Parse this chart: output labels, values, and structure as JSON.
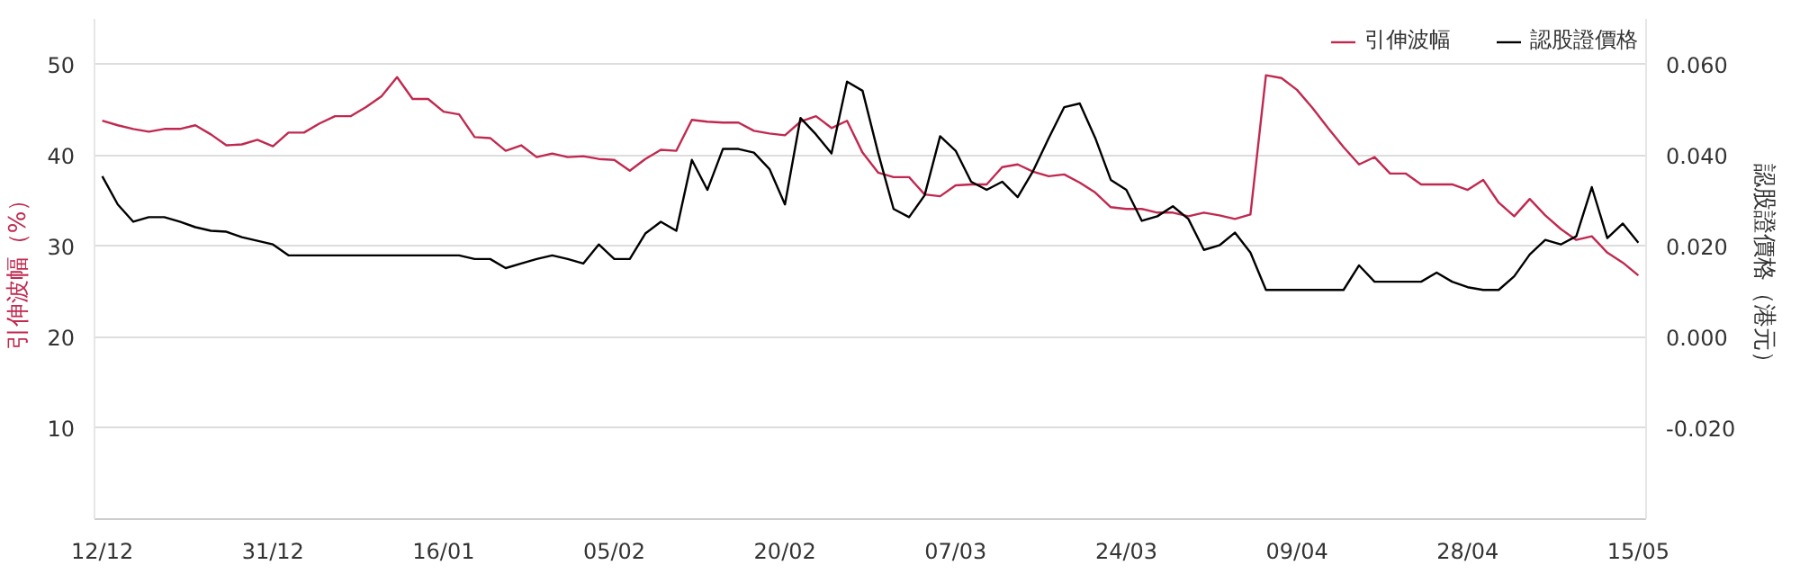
{
  "chart_data": {
    "type": "line",
    "categories": [
      "12/12",
      null,
      null,
      null,
      null,
      null,
      null,
      null,
      null,
      null,
      null,
      "31/12",
      null,
      null,
      null,
      null,
      null,
      null,
      null,
      null,
      null,
      null,
      "16/01",
      null,
      null,
      null,
      null,
      null,
      null,
      null,
      null,
      null,
      null,
      "05/02",
      null,
      null,
      null,
      null,
      null,
      null,
      null,
      null,
      null,
      null,
      "20/02",
      null,
      null,
      null,
      null,
      null,
      null,
      null,
      null,
      null,
      null,
      "07/03",
      null,
      null,
      null,
      null,
      null,
      null,
      null,
      null,
      null,
      null,
      "24/03",
      null,
      null,
      null,
      null,
      null,
      null,
      null,
      null,
      null,
      null,
      "09/04",
      null,
      null,
      null,
      null,
      null,
      null,
      null,
      null,
      null,
      null,
      "28/04",
      null,
      null,
      null,
      null,
      null,
      null,
      null,
      null,
      null,
      null,
      "15/05"
    ],
    "series": [
      {
        "name": "引伸波幅",
        "color": "#c0294f",
        "values": [
          43.8,
          43.3,
          42.9,
          42.6,
          42.9,
          42.9,
          43.3,
          42.3,
          41.1,
          41.2,
          41.7,
          41.0,
          42.5,
          42.5,
          43.5,
          44.3,
          44.3,
          45.3,
          46.5,
          48.6,
          46.2,
          46.2,
          44.8,
          44.5,
          42.0,
          41.9,
          40.5,
          41.1,
          39.8,
          40.2,
          39.8,
          39.9,
          39.6,
          39.5,
          38.3,
          39.6,
          40.6,
          40.5,
          43.9,
          43.7,
          43.6,
          43.6,
          42.7,
          42.4,
          42.2,
          43.7,
          44.3,
          43.0,
          43.8,
          40.3,
          38.1,
          37.6,
          37.6,
          35.7,
          35.5,
          36.7,
          36.8,
          36.8,
          38.7,
          39.0,
          38.2,
          37.7,
          37.9,
          37.0,
          35.9,
          34.3,
          34.1,
          34.1,
          33.7,
          33.7,
          33.3,
          33.7,
          33.4,
          33.0,
          33.5,
          48.8,
          48.5,
          47.2,
          45.2,
          43.0,
          40.9,
          39.0,
          39.8,
          38.0,
          38.0,
          36.8,
          36.8,
          36.8,
          36.2,
          37.3,
          34.8,
          33.3,
          35.2,
          33.4,
          31.9,
          30.7,
          31.1,
          29.3,
          28.2,
          26.8
        ]
      },
      {
        "name": "認股證價格",
        "color": "#000000",
        "axis": "y2",
        "values": [
          0.0354,
          0.0292,
          0.0254,
          0.0264,
          0.0264,
          0.0254,
          0.0242,
          0.0234,
          0.0232,
          0.022,
          0.0212,
          0.0204,
          0.018,
          0.018,
          0.018,
          0.018,
          0.018,
          0.018,
          0.018,
          0.018,
          0.018,
          0.018,
          0.018,
          0.018,
          0.0172,
          0.0172,
          0.0152,
          0.0162,
          0.0172,
          0.018,
          0.0172,
          0.0162,
          0.0204,
          0.0172,
          0.0172,
          0.0228,
          0.0254,
          0.0234,
          0.039,
          0.0324,
          0.0414,
          0.0414,
          0.0406,
          0.037,
          0.0292,
          0.0482,
          0.0446,
          0.0404,
          0.0562,
          0.0542,
          0.0406,
          0.0282,
          0.0264,
          0.0312,
          0.0442,
          0.041,
          0.0342,
          0.0324,
          0.0342,
          0.0308,
          0.0366,
          0.0438,
          0.0506,
          0.0514,
          0.0438,
          0.0346,
          0.0324,
          0.0256,
          0.0266,
          0.0288,
          0.026,
          0.0192,
          0.0202,
          0.023,
          0.0186,
          0.0104,
          0.0104,
          0.0104,
          0.0104,
          0.0104,
          0.0104,
          0.0158,
          0.0122,
          0.0122,
          0.0122,
          0.0122,
          0.0142,
          0.0122,
          0.011,
          0.0104,
          0.0104,
          0.0134,
          0.0182,
          0.0214,
          0.0204,
          0.0222,
          0.033,
          0.0218,
          0.025,
          0.0208
        ]
      }
    ],
    "ylabel": "引伸波幅（%）",
    "y2label": "認股證價格（港元）",
    "ylim": [
      0,
      55
    ],
    "yticks": [
      10,
      20,
      30,
      40,
      50
    ],
    "y2lim": [
      -0.04,
      0.07
    ],
    "y2ticks": [
      {
        "value": -0.02,
        "label": "-0.020"
      },
      {
        "value": 0,
        "label": "0.000"
      },
      {
        "value": 0.02,
        "label": "0.020"
      },
      {
        "value": 0.04,
        "label": "0.040"
      },
      {
        "value": 0.06,
        "label": "0.060"
      }
    ],
    "grid": "y",
    "legend": "top right",
    "marker": "none",
    "line_style": "solid"
  }
}
